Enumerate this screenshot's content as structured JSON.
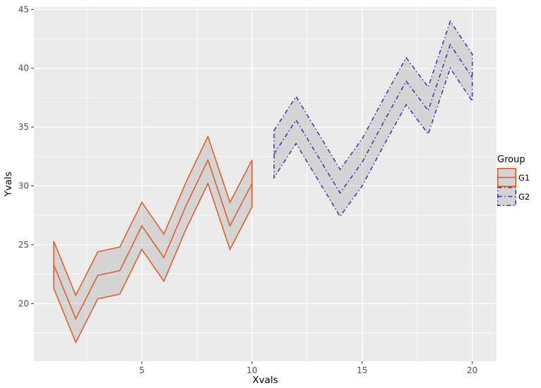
{
  "figure": {
    "background": "#FFFFFF",
    "panel_bg": "#EBEBEB",
    "grid_color": "#FFFFFF",
    "tick_color": "#333333",
    "tick_label_color": "#4D4D4D",
    "axis_title_color": "#000000"
  },
  "chart_data": {
    "type": "line",
    "subtype": "ribbon-with-center-line",
    "title": "",
    "xlabel": "Xvals",
    "ylabel": "Yvals",
    "xlim": [
      0.1,
      21.1
    ],
    "ylim": [
      15.1,
      45.2
    ],
    "x_major_ticks": [
      5,
      10,
      15,
      20
    ],
    "x_minor_gridlines": [
      2.5,
      7.5,
      12.5,
      17.5
    ],
    "y_major_ticks": [
      20,
      25,
      30,
      35,
      40,
      45
    ],
    "y_minor_gridlines": [
      17.5,
      22.5,
      27.5,
      32.5,
      37.5,
      42.5
    ],
    "grid": "major+minor",
    "ribbon_fill": "#666666",
    "ribbon_opacity": 0.17,
    "legend": {
      "title": "Group",
      "position": "right",
      "entries": [
        {
          "label": "G1",
          "color": "#E2571E",
          "linetype": "solid"
        },
        {
          "label": "G2",
          "color": "#3530B3",
          "linetype": "dotdash"
        }
      ]
    },
    "series": [
      {
        "name": "G1",
        "color": "#E2571E",
        "linetype": "solid",
        "x": [
          1,
          2,
          3,
          4,
          5,
          6,
          7,
          8,
          9,
          10
        ],
        "y": [
          23.3,
          18.7,
          22.4,
          22.8,
          26.6,
          23.9,
          28.3,
          32.2,
          26.6,
          30.2
        ],
        "ymin": [
          21.3,
          16.7,
          20.4,
          20.8,
          24.6,
          21.9,
          26.3,
          30.2,
          24.6,
          28.2
        ],
        "ymax": [
          25.3,
          20.7,
          24.4,
          24.8,
          28.6,
          25.9,
          30.3,
          34.2,
          28.6,
          32.2
        ]
      },
      {
        "name": "G2",
        "color": "#3530B3",
        "linetype": "dotdash",
        "x": [
          11,
          12,
          13,
          14,
          15,
          16,
          17,
          18,
          19,
          20
        ],
        "y": [
          32.7,
          35.6,
          32.5,
          29.4,
          32.0,
          35.5,
          38.9,
          36.4,
          42.0,
          39.2
        ],
        "ymin": [
          30.7,
          33.6,
          30.5,
          27.4,
          30.0,
          33.5,
          36.9,
          34.4,
          40.0,
          37.2
        ],
        "ymax": [
          34.7,
          37.6,
          34.5,
          31.4,
          34.0,
          37.5,
          40.9,
          38.4,
          44.0,
          41.2
        ]
      }
    ]
  }
}
